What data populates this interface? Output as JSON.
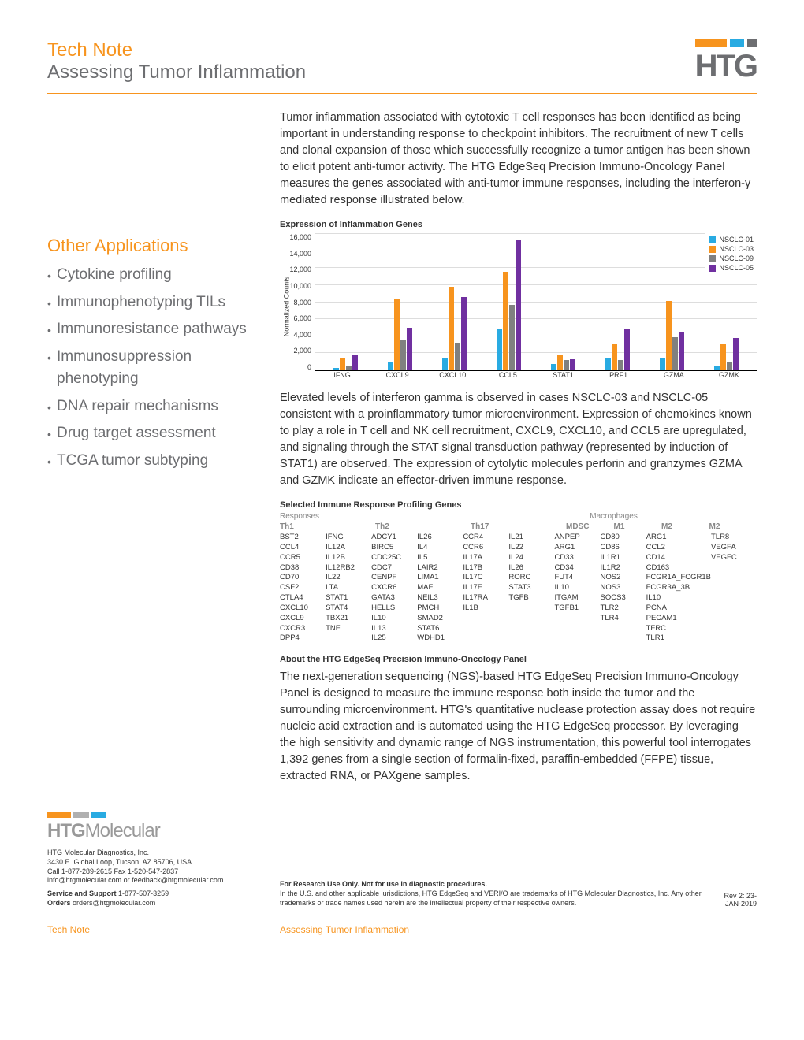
{
  "header": {
    "line1": "Tech Note",
    "line2": "Assessing Tumor Inflammation",
    "logo": "HTG"
  },
  "intro": "Tumor inflammation associated with cytotoxic T cell responses has been identified as being important in understanding response to checkpoint inhibitors. The recruitment of new T cells and clonal expansion of those which successfully recognize a tumor antigen has been shown to elicit potent anti-tumor activity. The HTG EdgeSeq Precision Immuno-Oncology Panel measures the genes associated with anti-tumor immune responses, including the interferon-γ mediated response illustrated below.",
  "sidebar": {
    "title": "Other Applications",
    "items": [
      "Cytokine profiling",
      "Immunophenotyping TILs",
      "Immunoresistance pathways",
      "Immunosuppression phenotyping",
      "DNA repair mechanisms",
      "Drug target assessment",
      "TCGA tumor subtyping"
    ]
  },
  "chart": {
    "title": "Expression of Inflammation Genes",
    "ylabel": "Normalized Counts",
    "ymax": 16000,
    "yticks": [
      "0",
      "2,000",
      "4,000",
      "6,000",
      "8,000",
      "10,000",
      "12,000",
      "14,000",
      "16,000"
    ],
    "series": [
      {
        "name": "NSCLC-01",
        "color": "#29abe2"
      },
      {
        "name": "NSCLC-03",
        "color": "#f7941e"
      },
      {
        "name": "NSCLC-09",
        "color": "#808080"
      },
      {
        "name": "NSCLC-05",
        "color": "#7030a0"
      }
    ],
    "categories": [
      "IFNG",
      "CXCL9",
      "CXCL10",
      "CCL5",
      "STAT1",
      "PRF1",
      "GZMA",
      "GZMK"
    ],
    "data": [
      [
        300,
        1400,
        600,
        1800
      ],
      [
        900,
        8300,
        3500,
        5000
      ],
      [
        1500,
        9800,
        3200,
        8600
      ],
      [
        4900,
        11500,
        7600,
        15200
      ],
      [
        700,
        1800,
        1200,
        1300
      ],
      [
        1500,
        3100,
        1200,
        4800
      ],
      [
        1400,
        8100,
        3900,
        4500
      ],
      [
        600,
        3000,
        900,
        3800
      ]
    ]
  },
  "para2": "Elevated levels of interferon gamma is observed in cases NSCLC-03 and NSCLC-05 consistent with a proinflammatory tumor microenvironment. Expression of chemokines known to play a role in T cell and NK cell recruitment, CXCL9, CXCL10, and CCL5 are upregulated, and signaling through the STAT signal transduction pathway (represented by induction of STAT1) are observed. The expression of cytolytic molecules perforin and granzymes GZMA and GZMK indicate an effector-driven immune response.",
  "genes": {
    "title": "Selected Immune Response Profiling Genes",
    "group1": "Responses",
    "group2": "Macrophages",
    "subheaders": [
      "Th1",
      "",
      "Th2",
      "",
      "Th17",
      "",
      "MDSC",
      "M1",
      "M2",
      "M2"
    ],
    "cols": [
      [
        "BST2",
        "CCL4",
        "CCR5",
        "CD38",
        "CD70",
        "CSF2",
        "CTLA4",
        "CXCL10",
        "CXCL9",
        "CXCR3",
        "DPP4"
      ],
      [
        "IFNG",
        "IL12A",
        "IL12B",
        "IL12RB2",
        "IL22",
        "LTA",
        "STAT1",
        "STAT4",
        "TBX21",
        "TNF"
      ],
      [
        "ADCY1",
        "BIRC5",
        "CDC25C",
        "CDC7",
        "CENPF",
        "CXCR6",
        "GATA3",
        "HELLS",
        "IL10",
        "IL13",
        "IL25"
      ],
      [
        "IL26",
        "IL4",
        "IL5",
        "LAIR2",
        "LIMA1",
        "MAF",
        "NEIL3",
        "PMCH",
        "SMAD2",
        "STAT6",
        "WDHD1"
      ],
      [
        "CCR4",
        "CCR6",
        "IL17A",
        "IL17B",
        "IL17C",
        "IL17F",
        "IL17RA",
        "IL1B"
      ],
      [
        "IL21",
        "IL22",
        "IL24",
        "IL26",
        "RORC",
        "STAT3",
        "TGFB"
      ],
      [
        "ANPEP",
        "ARG1",
        "CD33",
        "CD34",
        "FUT4",
        "IL10",
        "ITGAM",
        "TGFB1"
      ],
      [
        "CD80",
        "CD86",
        "IL1R1",
        "IL1R2",
        "NOS2",
        "NOS3",
        "SOCS3",
        "TLR2",
        "TLR4"
      ],
      [
        "ARG1",
        "CCL2",
        "CD14",
        "CD163",
        "FCGR1A_FCGR1B",
        "FCGR3A_3B",
        "IL10",
        "PCNA",
        "PECAM1",
        "TFRC",
        "TLR1"
      ],
      [
        "TLR8",
        "VEGFA",
        "VEGFC"
      ]
    ]
  },
  "about": {
    "title": "About the HTG EdgeSeq Precision Immuno-Oncology Panel",
    "text": "The next-generation sequencing (NGS)-based HTG EdgeSeq Precision Immuno-Oncology Panel is designed to measure the immune response both inside the tumor and the surrounding microenvironment. HTG's quantitative nuclease protection assay does not require nucleic acid extraction and is automated using the HTG EdgeSeq processor. By leveraging the high sensitivity and dynamic range of NGS instrumentation, this powerful tool interrogates 1,392 genes from a single section of formalin-fixed, paraffin-embedded (FFPE) tissue, extracted RNA, or PAXgene samples."
  },
  "footer": {
    "logo1": "HTG",
    "logo2": "Molecular",
    "company": "HTG Molecular Diagnostics, Inc.",
    "addr1": "3430 E. Global Loop, Tucson, AZ 85706, USA",
    "addr2": "Call 1-877-289-2615  Fax 1-520-547-2837",
    "addr3": "info@htgmolecular.com  or feedback@htgmolecular.com",
    "support_label": "Service and Support",
    "support_val": "1-877-507-3259",
    "orders_label": "Orders",
    "orders_val": "orders@htgmolecular.com",
    "disc1": "For Research Use Only. Not for use in diagnostic procedures.",
    "disc2": "In the U.S. and other applicable jurisdictions, HTG EdgeSeq and VERI/O are trademarks of HTG Molecular Diagnostics, Inc. Any other trademarks or trade names used herein are the intellectual property of their respective owners.",
    "rev": "Rev 2: 23-JAN-2019",
    "crumb1": "Tech Note",
    "crumb2": "Assessing Tumor Inflammation"
  }
}
